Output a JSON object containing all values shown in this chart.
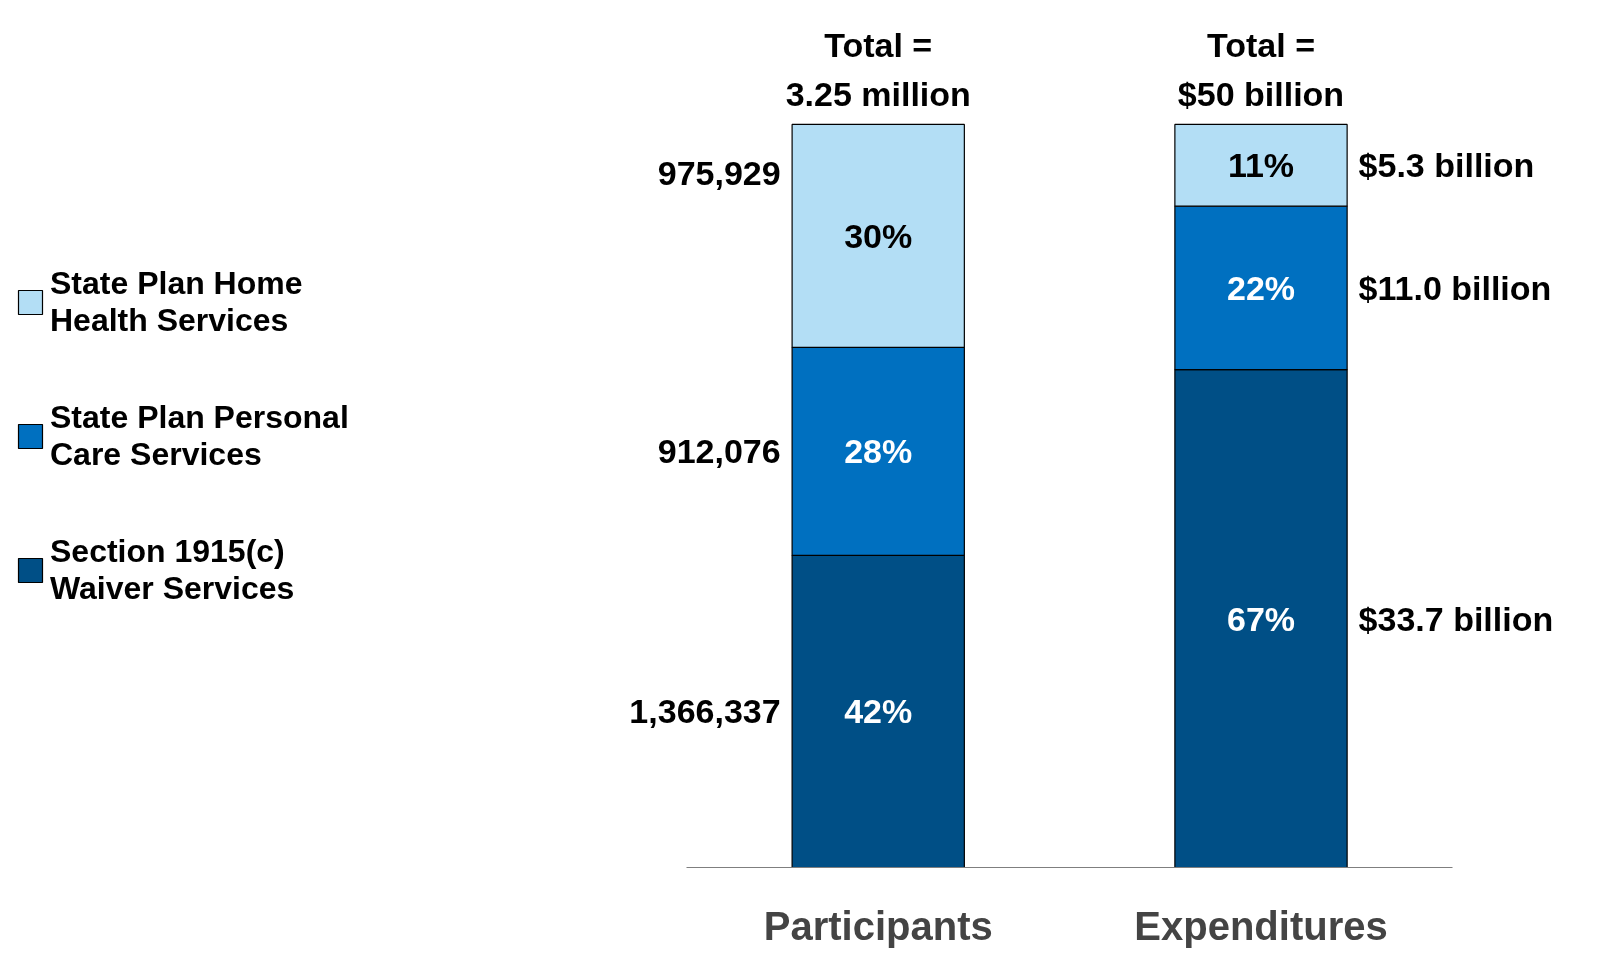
{
  "chart_data": {
    "type": "bar",
    "stacked": true,
    "categories": [
      "Participants",
      "Expenditures"
    ],
    "series": [
      {
        "name": "Section 1915(c) Waiver Services",
        "color": "#004f86",
        "values": [
          42,
          67
        ],
        "value_labels": [
          "42%",
          "67%"
        ]
      },
      {
        "name": "State Plan Personal Care Services",
        "color": "#0070c0",
        "values": [
          28,
          22
        ],
        "value_labels": [
          "28%",
          "22%"
        ]
      },
      {
        "name": "State Plan Home Health Services",
        "color": "#b3def5",
        "values": [
          30,
          11
        ],
        "value_labels": [
          "30%",
          "11%"
        ]
      }
    ],
    "annotations": [
      "Total =\n3.25 million",
      "Total =\n$50 billion",
      "1,366,337",
      "912,076",
      "975,929",
      "$33.7 billion",
      "$11.0 billion",
      "$5.3 billion"
    ],
    "legend": "left",
    "grid": false
  }
}
